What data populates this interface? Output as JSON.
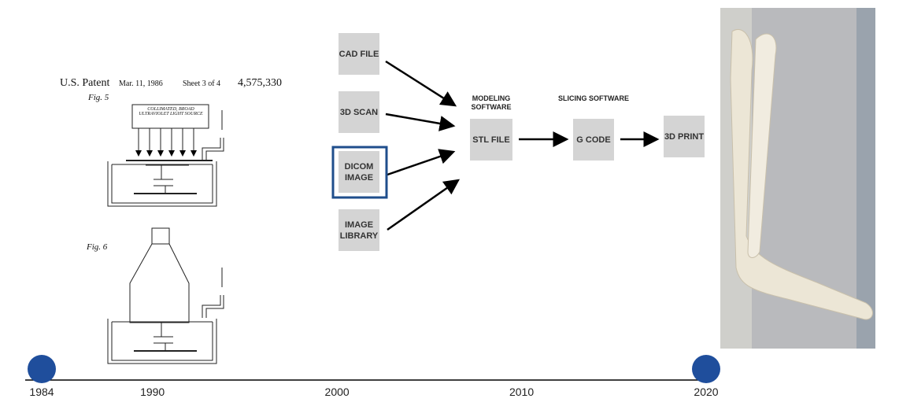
{
  "patent": {
    "office": "U.S. Patent",
    "date": "Mar. 11, 1986",
    "sheet": "Sheet 3 of 4",
    "number": "4,575,330",
    "figures": [
      "Fig. 5",
      "Fig. 6"
    ],
    "light_source": "COLLIMATED, BROAD ULTRAVIOLET LIGHT SOURCE"
  },
  "workflow": {
    "inputs": [
      "CAD FILE",
      "3D SCAN",
      "DICOM IMAGE",
      "IMAGE LIBRARY"
    ],
    "stages": [
      {
        "heading": "MODELING SOFTWARE",
        "label": "STL FILE"
      },
      {
        "heading": "SLICING SOFTWARE",
        "label": "G CODE"
      },
      {
        "heading": null,
        "label": "3D PRINT"
      }
    ]
  },
  "timeline": {
    "range": [
      1984,
      2020
    ],
    "years": [
      1984,
      1990,
      2000,
      2010,
      2020
    ],
    "milestones": [
      1984,
      2020
    ]
  }
}
